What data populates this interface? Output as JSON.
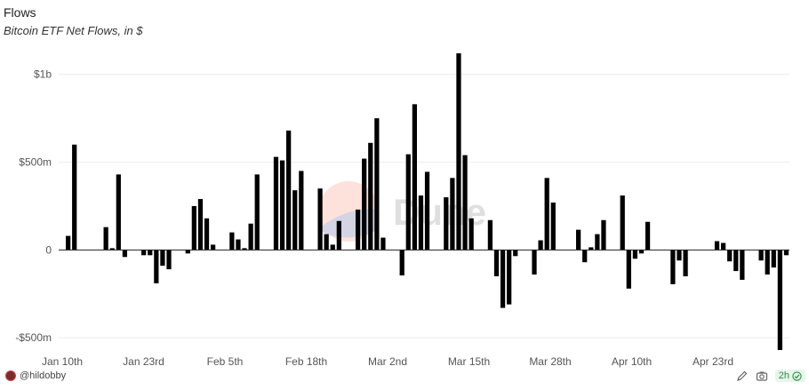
{
  "header": {
    "title": "Flows",
    "subtitle": "Bitcoin ETF Net Flows, in $"
  },
  "watermark": {
    "text": "Dune"
  },
  "footer": {
    "author": "@hildobby",
    "refresh_label": "2h"
  },
  "colors": {
    "bar": "#000000",
    "grid": "#ececec",
    "zero": "#222222",
    "refresh": "#2f8a47"
  },
  "icons": [
    "edit-icon",
    "camera-icon",
    "check-circle-icon"
  ],
  "chart_data": {
    "type": "bar",
    "title": "Flows",
    "subtitle": "Bitcoin ETF Net Flows, in $",
    "xlabel": "",
    "ylabel": "",
    "ylim": [
      -575,
      1120
    ],
    "y_ticks": [
      {
        "value": 1000,
        "label": "$1b"
      },
      {
        "value": 500,
        "label": "$500m"
      },
      {
        "value": 0,
        "label": "0"
      },
      {
        "value": -500,
        "label": "-$500m"
      }
    ],
    "x_ticks": [
      "Jan 10th",
      "Jan 23rd",
      "Feb 5th",
      "Feb 18th",
      "Mar 2nd",
      "Mar 15th",
      "Mar 28th",
      "Apr 10th",
      "Apr 23rd"
    ],
    "grid": true,
    "units": "$m",
    "values": [
      0,
      80,
      600,
      0,
      0,
      0,
      0,
      130,
      10,
      430,
      -40,
      0,
      0,
      -30,
      -30,
      -190,
      -90,
      -110,
      0,
      0,
      -20,
      250,
      290,
      180,
      30,
      0,
      0,
      100,
      60,
      10,
      150,
      430,
      0,
      0,
      530,
      510,
      680,
      340,
      450,
      0,
      0,
      350,
      90,
      30,
      165,
      0,
      0,
      230,
      520,
      610,
      750,
      70,
      0,
      0,
      -145,
      545,
      830,
      310,
      445,
      0,
      0,
      300,
      410,
      1120,
      540,
      180,
      0,
      0,
      170,
      -150,
      -330,
      -310,
      -35,
      0,
      0,
      -140,
      55,
      410,
      270,
      0,
      0,
      0,
      115,
      -70,
      15,
      90,
      170,
      0,
      0,
      310,
      -220,
      -50,
      -20,
      160,
      0,
      0,
      0,
      -195,
      -60,
      -150,
      0,
      0,
      0,
      0,
      50,
      40,
      -65,
      -120,
      -170,
      0,
      0,
      -60,
      -140,
      -100,
      -570,
      -30
    ]
  }
}
